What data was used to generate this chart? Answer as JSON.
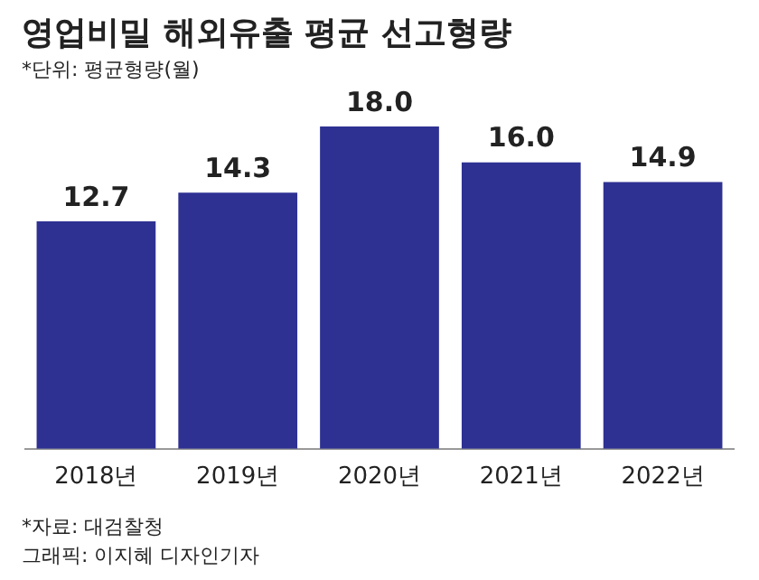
{
  "chart_data": {
    "type": "bar",
    "title": "영업비밀 해외유출 평균 선고형량",
    "subtitle": "*단위: 평균형량(월)",
    "categories": [
      "2018년",
      "2019년",
      "2020년",
      "2021년",
      "2022년"
    ],
    "values": [
      12.7,
      14.3,
      18.0,
      16.0,
      14.9
    ],
    "value_labels": [
      "12.7",
      "14.3",
      "18.0",
      "16.0",
      "14.9"
    ],
    "color": "#2e3192",
    "grid": false,
    "legend": false,
    "annotations": [
      "*자료: 대검찰청",
      "그래픽: 이지혜 디자인기자"
    ]
  }
}
